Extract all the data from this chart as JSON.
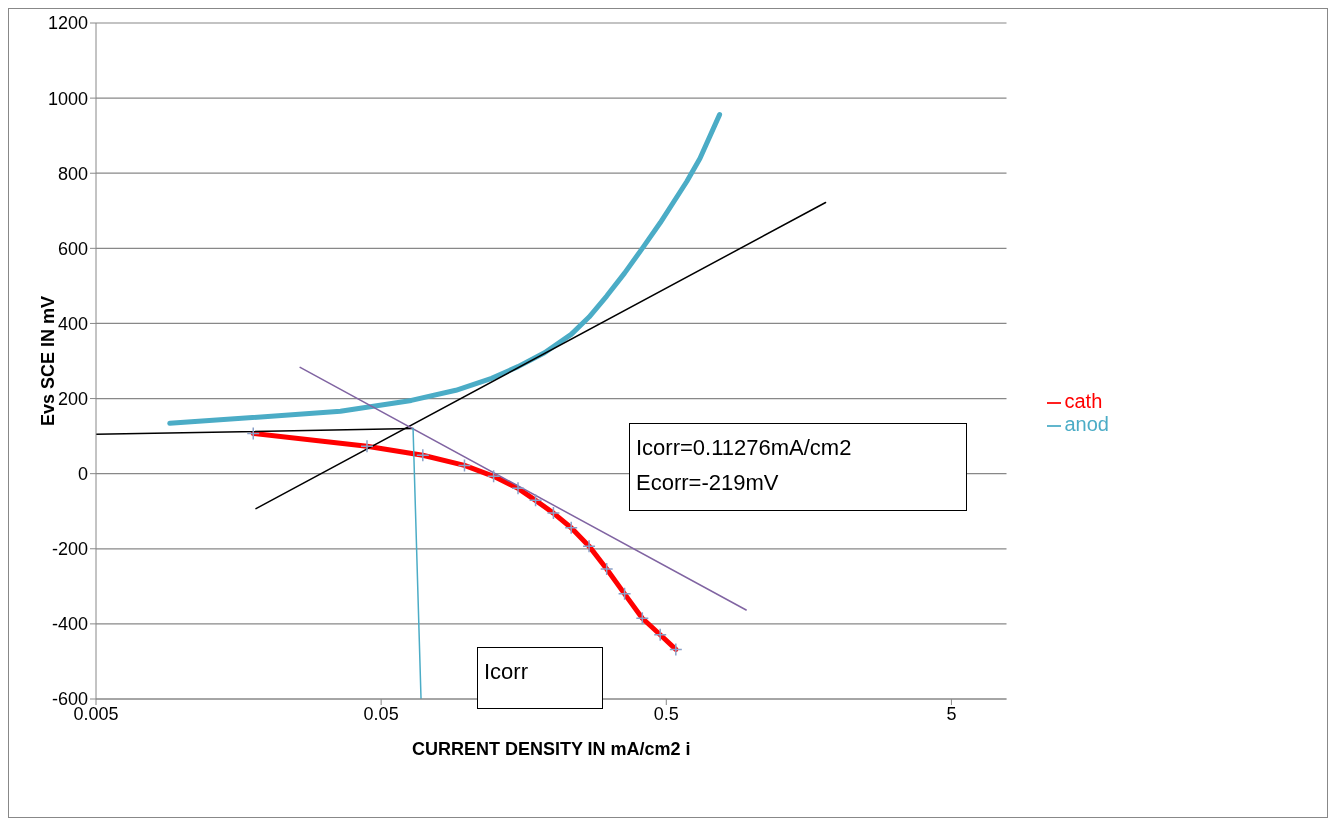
{
  "chart_data": {
    "type": "line",
    "xlabel": "CURRENT DENSITY IN mA/cm2 i",
    "ylabel": "Evs SCE IN mV",
    "log": "x",
    "xlim": [
      0.005,
      7.8
    ],
    "xticks": [
      0.005,
      0.05,
      0.5,
      5
    ],
    "ylim": [
      -600,
      1200
    ],
    "yticks": [
      -600,
      -400,
      -200,
      0,
      200,
      400,
      600,
      800,
      1000,
      1200
    ],
    "grid": "y",
    "legend": "right",
    "line_style": "solid",
    "series": [
      {
        "name": "cath",
        "color": "#ff0000",
        "marker": "cross",
        "x": [
          0.0178,
          0.0446,
          0.07,
          0.098,
          0.124,
          0.151,
          0.174,
          0.201,
          0.232,
          0.268,
          0.309,
          0.357,
          0.412,
          0.476,
          0.54
        ],
        "values": [
          107,
          73,
          49,
          22,
          -7,
          -39,
          -71,
          -105,
          -144,
          -193,
          -254,
          -320,
          -385,
          -429,
          -468
        ]
      },
      {
        "name": "anod",
        "color": "#4bacc6",
        "marker": "none",
        "x": [
          0.00907,
          0.036,
          0.0638,
          0.0914,
          0.122,
          0.151,
          0.187,
          0.232,
          0.268,
          0.309,
          0.357,
          0.412,
          0.476,
          0.59,
          0.656,
          0.769
        ],
        "values": [
          134,
          166,
          195,
          222,
          254,
          285,
          322,
          371,
          417,
          473,
          534,
          600,
          668,
          778,
          839,
          956
        ]
      },
      {
        "color": "#000000",
        "marker": "none",
        "x": [
          0.0182,
          1.81
        ],
        "values": [
          -93,
          722
        ]
      },
      {
        "color": "#000000",
        "marker": "none",
        "x": [
          0.005,
          0.0647
        ],
        "values": [
          105,
          120
        ]
      },
      {
        "color": "#8064a2",
        "marker": "none",
        "x": [
          0.026,
          0.953
        ],
        "values": [
          283,
          -363
        ]
      },
      {
        "color": "#4bacc6",
        "marker": "none",
        "x": [
          0.0647,
          0.069
        ],
        "values": [
          120,
          -600
        ]
      }
    ],
    "annotations": [
      "Icorr=0.11276mA/cm2\nEcorr=-219mV",
      "Icorr"
    ]
  }
}
